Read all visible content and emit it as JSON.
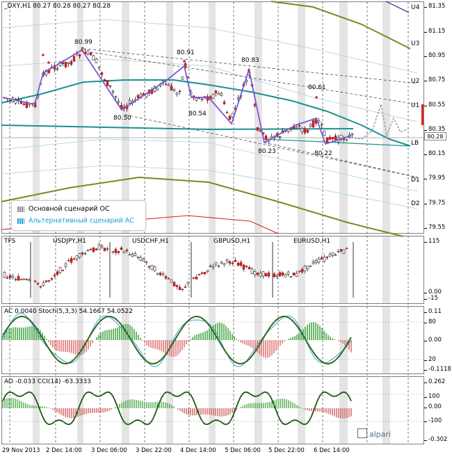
{
  "main": {
    "header": "_DXY,H1  80.27 80.28 80.27 80.28",
    "levels": [
      {
        "name": "U4",
        "value": 81.35
      },
      {
        "name": "U3",
        "value": 81.03
      },
      {
        "name": "U2",
        "value": 80.71
      },
      {
        "name": "U1",
        "value": 80.53
      },
      {
        "name": "LB",
        "value": 80.23
      },
      {
        "name": "D1",
        "value": 79.92
      },
      {
        "name": "D2",
        "value": 79.76
      }
    ],
    "ticks": [
      "81.35",
      "81.15",
      "80.95",
      "80.75",
      "80.55",
      "80.35",
      "80.15",
      "79.95",
      "79.75",
      "79.55"
    ],
    "price_tag": "80.28",
    "annotations": [
      "80.99",
      "80.91",
      "80.83",
      "80.61",
      "80.50",
      "80.54",
      "80.23",
      "80.22"
    ]
  },
  "legend": {
    "main_label": "Основной сценарий ОС",
    "alt_label": "Альтернативный сценарий АС",
    "alt_color": "#1aa0d8"
  },
  "pane2": {
    "header_left": "TFS",
    "symbols": [
      "USDJPY,H1",
      "USDCHF,H1",
      "GBPUSD,H1",
      "EURUSD,H1"
    ],
    "ticks": [
      "115",
      "0.00",
      "-15"
    ]
  },
  "pane3": {
    "header": "AC 0.0040   Stoch(5,3,3) 54.1667 54.0522",
    "ticks": [
      "0.11",
      "80",
      "0.00",
      "20",
      "-0.1118"
    ]
  },
  "pane4": {
    "header": "AO -0.033   CCI(14) -63.3333",
    "ticks": [
      "0.262",
      "100",
      "0.00",
      "-100",
      "-0.302"
    ]
  },
  "xaxis": [
    "29 Nov 2013",
    "2 Dec 14:00",
    "3 Dec 06:00",
    "3 Dec 22:00",
    "4 Dec 14:00",
    "5 Dec 06:00",
    "5 Dec 22:00",
    "6 Dec 14:00"
  ],
  "brand": "alpari"
}
